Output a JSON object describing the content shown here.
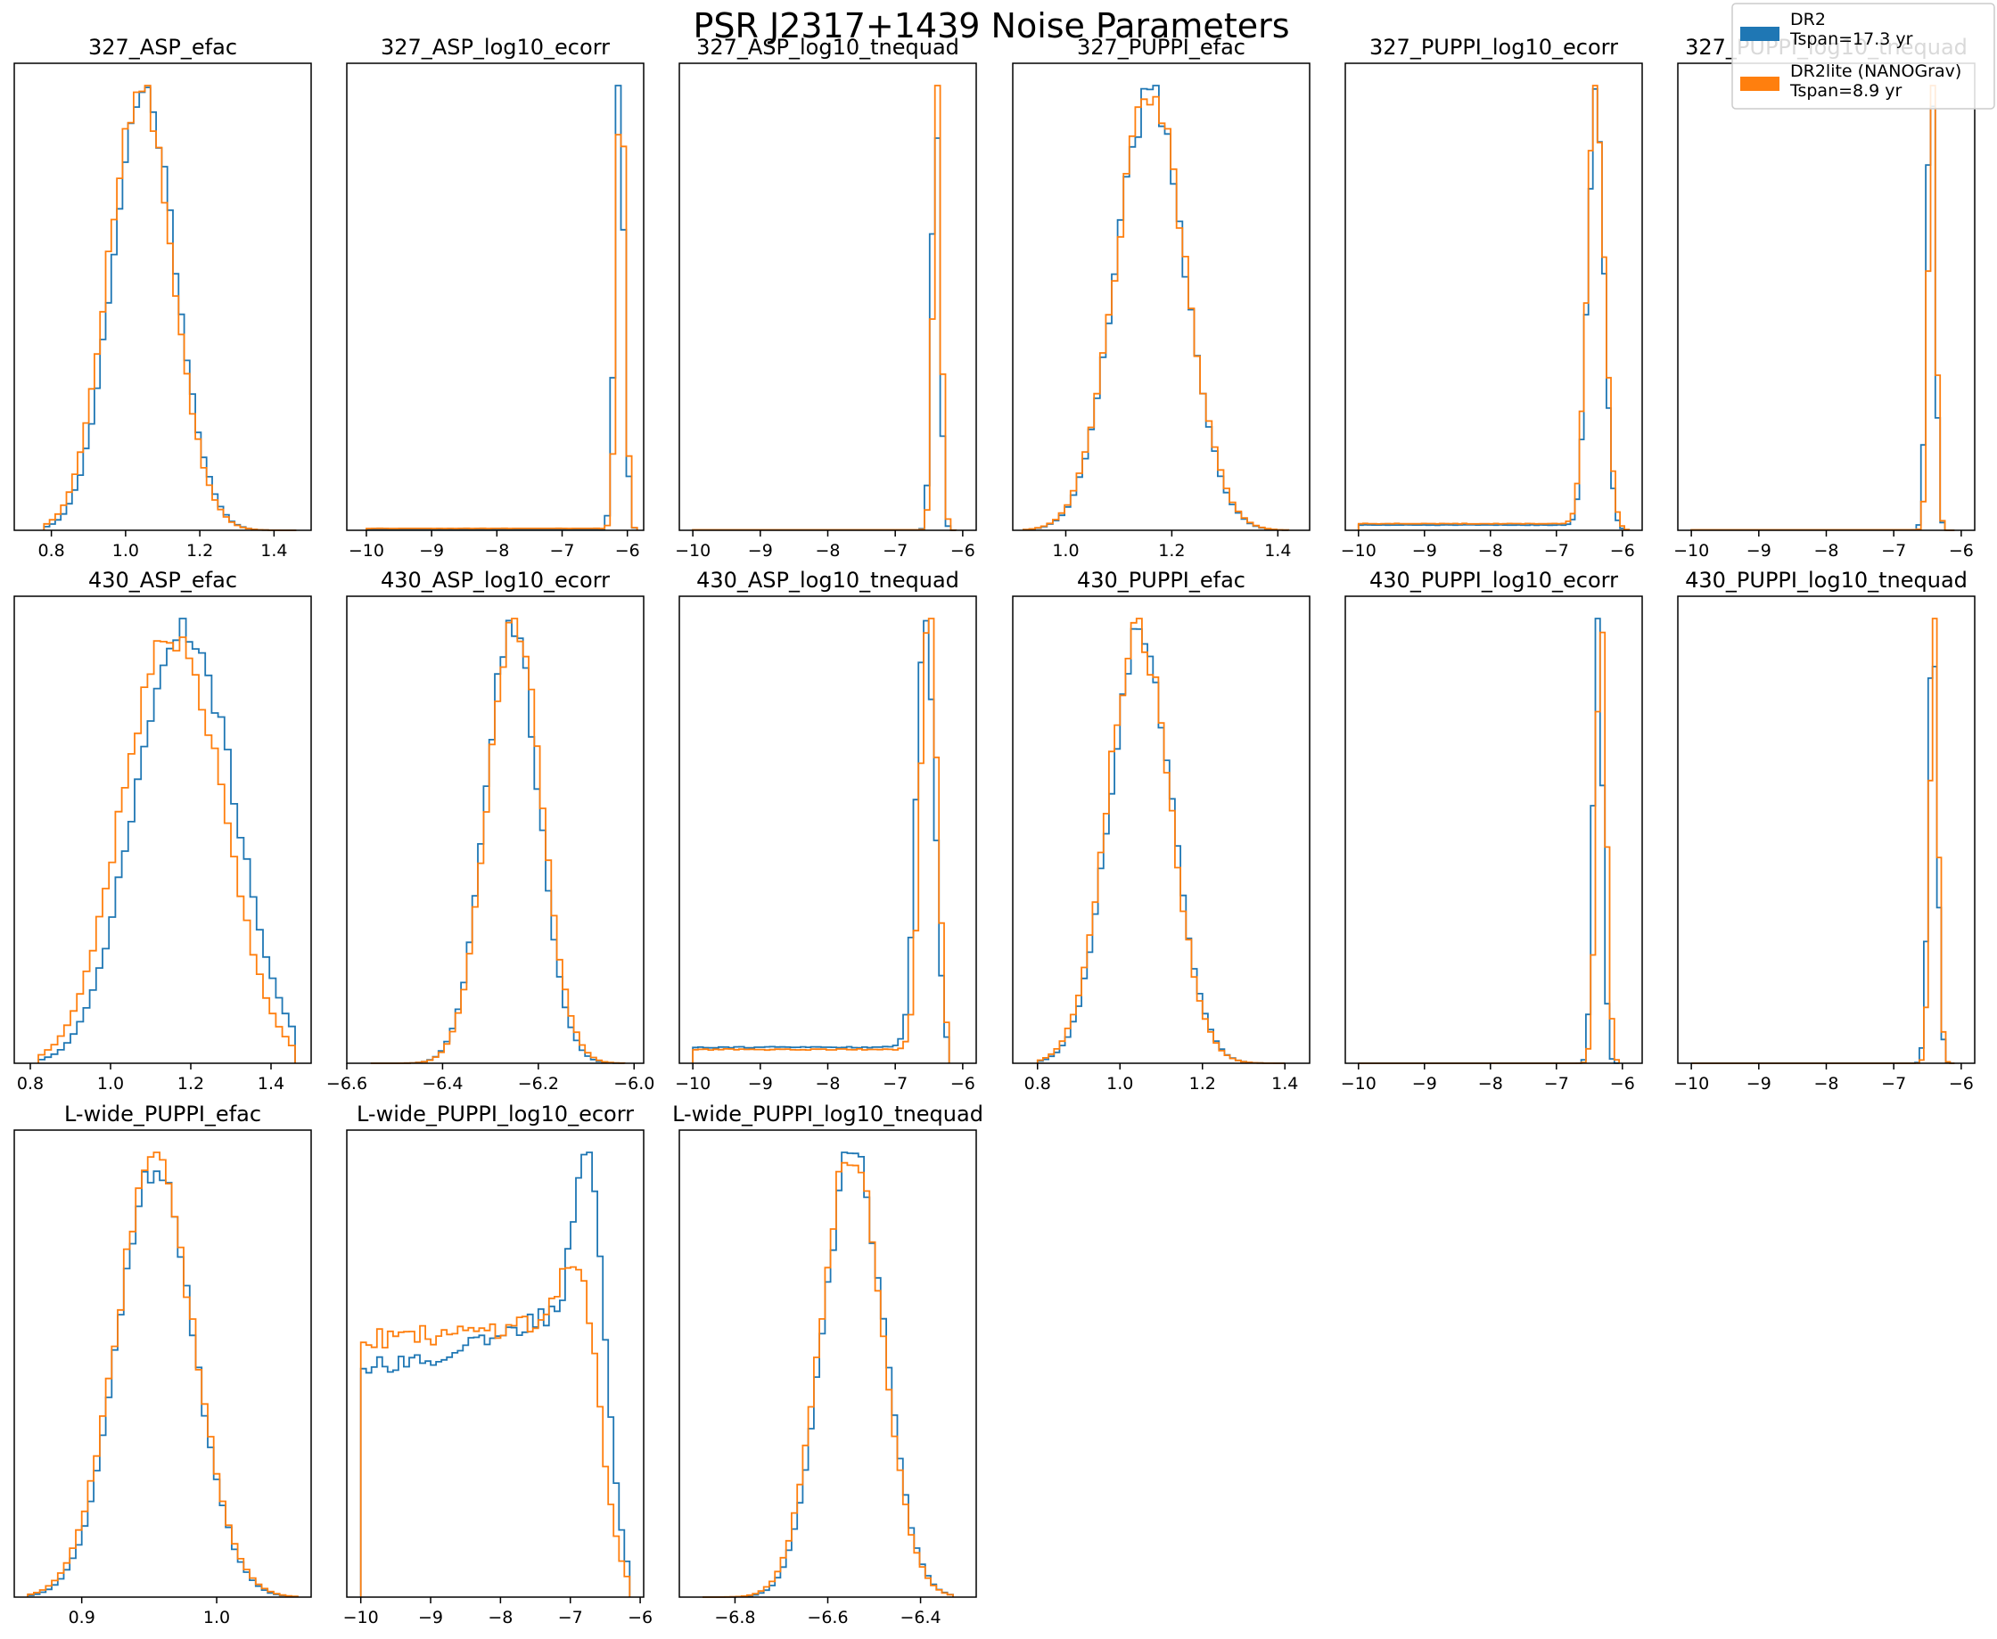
{
  "figure": {
    "title": "PSR J2317+1439 Noise Parameters",
    "legend": {
      "placement": "top-right",
      "entries": [
        {
          "line1": "DR2",
          "line2": "Tspan=17.3 yr",
          "color": "#1f77b4"
        },
        {
          "line1": "DR2lite (NANOGrav)",
          "line2": "Tspan=8.9 yr",
          "color": "#ff7f0e"
        }
      ]
    }
  },
  "chart_data": [
    {
      "type": "histogram",
      "title": "327_ASP_efac",
      "xlim": [
        0.7,
        1.5
      ],
      "xticks": [
        0.8,
        1.0,
        1.2,
        1.4
      ],
      "tick_labels": [
        "0.8",
        "1.0",
        "1.2",
        "1.4"
      ],
      "series": [
        {
          "shape": "gauss",
          "mu": 1.05,
          "sigma": 0.085,
          "range": [
            0.78,
            1.46
          ],
          "bins": 45,
          "seed": 11
        },
        {
          "shape": "gauss",
          "mu": 1.04,
          "sigma": 0.087,
          "range": [
            0.78,
            1.46
          ],
          "bins": 45,
          "seed": 12
        }
      ]
    },
    {
      "type": "histogram",
      "title": "327_ASP_log10_ecorr",
      "xlim": [
        -10.3,
        -5.75
      ],
      "xticks": [
        -10,
        -9,
        -8,
        -7,
        -6
      ],
      "tick_labels": [
        "−10",
        "−9",
        "−8",
        "−7",
        "−6"
      ],
      "series": [
        {
          "shape": "sharp",
          "mu": -6.12,
          "sigma": 0.07,
          "floor": 0.002,
          "range": [
            -10,
            -5.85
          ],
          "bins": 50,
          "seed": 21
        },
        {
          "shape": "sharp",
          "mu": -6.1,
          "sigma": 0.065,
          "floor": 0.004,
          "range": [
            -10,
            -5.85
          ],
          "bins": 50,
          "seed": 22
        }
      ]
    },
    {
      "type": "histogram",
      "title": "327_ASP_log10_tnequad",
      "xlim": [
        -10.2,
        -5.8
      ],
      "xticks": [
        -10,
        -9,
        -8,
        -7,
        -6
      ],
      "tick_labels": [
        "−10",
        "−9",
        "−8",
        "−7",
        "−6"
      ],
      "series": [
        {
          "shape": "sharp",
          "mu": -6.4,
          "sigma": 0.06,
          "floor": 0.001,
          "range": [
            -10,
            -6.1
          ],
          "bins": 50,
          "seed": 31
        },
        {
          "shape": "sharp",
          "mu": -6.38,
          "sigma": 0.06,
          "floor": 0.001,
          "range": [
            -10,
            -6.1
          ],
          "bins": 50,
          "seed": 32
        }
      ]
    },
    {
      "type": "histogram",
      "title": "327_PUPPI_efac",
      "xlim": [
        0.9,
        1.46
      ],
      "xticks": [
        1.0,
        1.2,
        1.4
      ],
      "tick_labels": [
        "1.0",
        "1.2",
        "1.4"
      ],
      "series": [
        {
          "shape": "gauss",
          "mu": 1.16,
          "sigma": 0.065,
          "range": [
            0.92,
            1.42
          ],
          "bins": 45,
          "seed": 41
        },
        {
          "shape": "gauss",
          "mu": 1.16,
          "sigma": 0.066,
          "range": [
            0.92,
            1.42
          ],
          "bins": 45,
          "seed": 42
        }
      ]
    },
    {
      "type": "histogram",
      "title": "327_PUPPI_log10_ecorr",
      "xlim": [
        -10.2,
        -5.7
      ],
      "xticks": [
        -10,
        -9,
        -8,
        -7,
        -6
      ],
      "tick_labels": [
        "−10",
        "−9",
        "−8",
        "−7",
        "−6"
      ],
      "series": [
        {
          "shape": "sharp",
          "mu": -6.4,
          "sigma": 0.12,
          "floor": 0.012,
          "range": [
            -10,
            -5.9
          ],
          "bins": 60,
          "seed": 51
        },
        {
          "shape": "sharp",
          "mu": -6.4,
          "sigma": 0.13,
          "floor": 0.015,
          "range": [
            -10,
            -5.9
          ],
          "bins": 60,
          "seed": 52
        }
      ]
    },
    {
      "type": "histogram",
      "title": "327_PUPPI_log10_tnequad",
      "xlim": [
        -10.2,
        -5.8
      ],
      "xticks": [
        -10,
        -9,
        -8,
        -7,
        -6
      ],
      "tick_labels": [
        "−10",
        "−9",
        "−8",
        "−7",
        "−6"
      ],
      "series": [
        {
          "shape": "sharp",
          "mu": -6.45,
          "sigma": 0.06,
          "floor": 0.001,
          "range": [
            -10,
            -6.1
          ],
          "bins": 55,
          "seed": 61
        },
        {
          "shape": "sharp",
          "mu": -6.43,
          "sigma": 0.055,
          "floor": 0.001,
          "range": [
            -10,
            -6.1
          ],
          "bins": 55,
          "seed": 62
        }
      ]
    },
    {
      "type": "histogram",
      "title": "430_ASP_efac",
      "xlim": [
        0.76,
        1.5
      ],
      "xticks": [
        0.8,
        1.0,
        1.2,
        1.4
      ],
      "tick_labels": [
        "0.8",
        "1.0",
        "1.2",
        "1.4"
      ],
      "series": [
        {
          "shape": "plateau",
          "mu": 1.18,
          "sigma": 0.1,
          "range": [
            0.82,
            1.46
          ],
          "bins": 40,
          "seed": 71
        },
        {
          "shape": "plateau",
          "mu": 1.15,
          "sigma": 0.1,
          "range": [
            0.82,
            1.46
          ],
          "bins": 40,
          "seed": 72
        }
      ]
    },
    {
      "type": "histogram",
      "title": "430_ASP_log10_ecorr",
      "xlim": [
        -6.6,
        -5.98
      ],
      "xticks": [
        -6.6,
        -6.4,
        -6.2,
        -6.0
      ],
      "tick_labels": [
        "−6.6",
        "−6.4",
        "−6.2",
        "−6.0"
      ],
      "series": [
        {
          "shape": "gauss",
          "mu": -6.255,
          "sigma": 0.055,
          "range": [
            -6.55,
            -6.02
          ],
          "bins": 45,
          "seed": 81
        },
        {
          "shape": "gauss",
          "mu": -6.25,
          "sigma": 0.056,
          "range": [
            -6.55,
            -6.02
          ],
          "bins": 45,
          "seed": 82
        }
      ]
    },
    {
      "type": "histogram",
      "title": "430_ASP_log10_tnequad",
      "xlim": [
        -10.2,
        -5.8
      ],
      "xticks": [
        -10,
        -9,
        -8,
        -7,
        -6
      ],
      "tick_labels": [
        "−10",
        "−9",
        "−8",
        "−7",
        "−6"
      ],
      "series": [
        {
          "shape": "sharp",
          "mu": -6.55,
          "sigma": 0.13,
          "floor": 0.035,
          "range": [
            -10,
            -6.2
          ],
          "bins": 50,
          "seed": 91
        },
        {
          "shape": "sharp",
          "mu": -6.5,
          "sigma": 0.12,
          "floor": 0.03,
          "range": [
            -10,
            -6.2
          ],
          "bins": 50,
          "seed": 92
        }
      ]
    },
    {
      "type": "histogram",
      "title": "430_PUPPI_efac",
      "xlim": [
        0.74,
        1.46
      ],
      "xticks": [
        0.8,
        1.0,
        1.2,
        1.4
      ],
      "tick_labels": [
        "0.8",
        "1.0",
        "1.2",
        "1.4"
      ],
      "series": [
        {
          "shape": "gauss",
          "mu": 1.05,
          "sigma": 0.075,
          "range": [
            0.8,
            1.4
          ],
          "bins": 45,
          "seed": 101
        },
        {
          "shape": "gauss",
          "mu": 1.045,
          "sigma": 0.076,
          "range": [
            0.8,
            1.4
          ],
          "bins": 45,
          "seed": 102
        }
      ]
    },
    {
      "type": "histogram",
      "title": "430_PUPPI_log10_ecorr",
      "xlim": [
        -10.2,
        -5.7
      ],
      "xticks": [
        -10,
        -9,
        -8,
        -7,
        -6
      ],
      "tick_labels": [
        "−10",
        "−9",
        "−8",
        "−7",
        "−6"
      ],
      "series": [
        {
          "shape": "sharp",
          "mu": -6.37,
          "sigma": 0.07,
          "floor": 0.0,
          "range": [
            -10,
            -6.05
          ],
          "bins": 55,
          "seed": 111
        },
        {
          "shape": "sharp",
          "mu": -6.32,
          "sigma": 0.075,
          "floor": 0.0,
          "range": [
            -10,
            -6.05
          ],
          "bins": 55,
          "seed": 112
        }
      ]
    },
    {
      "type": "histogram",
      "title": "430_PUPPI_log10_tnequad",
      "xlim": [
        -10.2,
        -5.8
      ],
      "xticks": [
        -10,
        -9,
        -8,
        -7,
        -6
      ],
      "tick_labels": [
        "−10",
        "−9",
        "−8",
        "−7",
        "−6"
      ],
      "series": [
        {
          "shape": "sharp",
          "mu": -6.42,
          "sigma": 0.065,
          "floor": 0.0,
          "range": [
            -10,
            -6.1
          ],
          "bins": 60,
          "seed": 121
        },
        {
          "shape": "sharp",
          "mu": -6.4,
          "sigma": 0.06,
          "floor": 0.0,
          "range": [
            -10,
            -6.1
          ],
          "bins": 60,
          "seed": 122
        }
      ]
    },
    {
      "type": "histogram",
      "title": "L-wide_PUPPI_efac",
      "xlim": [
        0.85,
        1.07
      ],
      "xticks": [
        0.9,
        1.0
      ],
      "tick_labels": [
        "0.9",
        "1.0"
      ],
      "series": [
        {
          "shape": "gauss",
          "mu": 0.955,
          "sigma": 0.028,
          "range": [
            0.86,
            1.06
          ],
          "bins": 45,
          "seed": 131
        },
        {
          "shape": "gauss",
          "mu": 0.954,
          "sigma": 0.029,
          "range": [
            0.86,
            1.06
          ],
          "bins": 45,
          "seed": 132
        }
      ]
    },
    {
      "type": "histogram",
      "title": "L-wide_PUPPI_log10_ecorr",
      "xlim": [
        -10.2,
        -5.95
      ],
      "xticks": [
        -10,
        -9,
        -8,
        -7,
        -6
      ],
      "tick_labels": [
        "−10",
        "−9",
        "−8",
        "−7",
        "−6"
      ],
      "series": [
        {
          "shape": "ramp",
          "mu": -6.75,
          "sigma": 0.25,
          "floor": 0.52,
          "peak": 1.0,
          "range": [
            -10,
            -6.15
          ],
          "bins": 50,
          "seed": 141
        },
        {
          "shape": "ramp",
          "mu": -6.9,
          "sigma": 0.3,
          "floor": 0.58,
          "peak": 0.75,
          "range": [
            -10,
            -6.15
          ],
          "bins": 50,
          "seed": 142
        }
      ]
    },
    {
      "type": "histogram",
      "title": "L-wide_PUPPI_log10_tnequad",
      "xlim": [
        -6.92,
        -6.28
      ],
      "xticks": [
        -6.8,
        -6.6,
        -6.4
      ],
      "tick_labels": [
        "−6.8",
        "−6.6",
        "−6.4"
      ],
      "series": [
        {
          "shape": "gauss",
          "mu": -6.545,
          "sigma": 0.065,
          "range": [
            -6.87,
            -6.33
          ],
          "bins": 45,
          "seed": 151
        },
        {
          "shape": "gauss",
          "mu": -6.55,
          "sigma": 0.066,
          "range": [
            -6.87,
            -6.33
          ],
          "bins": 45,
          "seed": 152
        }
      ]
    }
  ]
}
